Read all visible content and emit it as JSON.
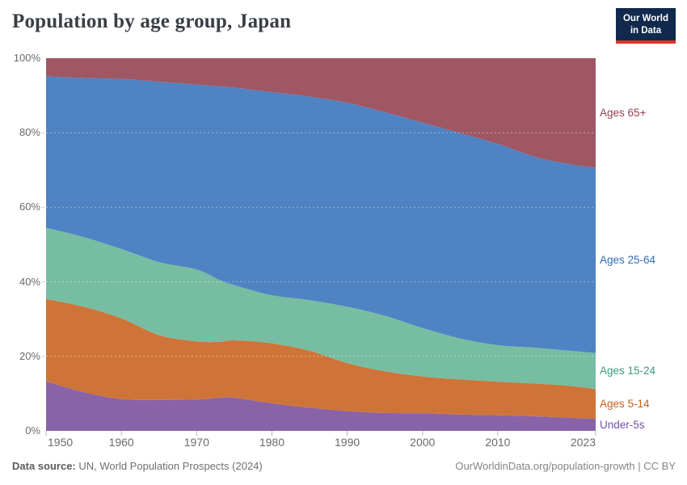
{
  "header": {
    "title": "Population by age group, Japan",
    "logo": {
      "line1": "Our World",
      "line2": "in Data"
    }
  },
  "footer": {
    "source_label": "Data source:",
    "source_value": " UN, World Population Prospects (2024)",
    "link": "OurWorldinData.org/population-growth",
    "separator": " | ",
    "license": "CC BY"
  },
  "chart_data": {
    "type": "area",
    "stacked": true,
    "normalized": true,
    "unit": "%",
    "title": "Population by age group, Japan",
    "xlim": [
      1950,
      2023
    ],
    "ylim": [
      0,
      100
    ],
    "grid": "dashed-horizontal",
    "legend_position": "right",
    "x": [
      1950,
      1955,
      1960,
      1965,
      1970,
      1973,
      1975,
      1980,
      1985,
      1990,
      1995,
      2000,
      2005,
      2010,
      2015,
      2020,
      2023
    ],
    "x_tick_years": [
      1950,
      1960,
      1970,
      1980,
      1990,
      2000,
      2010,
      2023
    ],
    "x_tick_labels": [
      "1950",
      "1960",
      "1970",
      "1980",
      "1990",
      "2000",
      "2010",
      "2023"
    ],
    "y_tick_values": [
      0,
      20,
      40,
      60,
      80,
      100
    ],
    "y_tick_labels": [
      "0%",
      "20%",
      "40%",
      "60%",
      "80%",
      "100%"
    ],
    "gridline_values": [
      20,
      40,
      60,
      80
    ],
    "series": [
      {
        "name": "Under-5s",
        "color": "#8a62a8",
        "label_color": "#7152a8",
        "values": [
          13.3,
          10.4,
          8.5,
          8.3,
          8.4,
          8.9,
          8.9,
          7.4,
          6.2,
          5.3,
          4.8,
          4.7,
          4.4,
          4.2,
          3.9,
          3.5,
          3.2
        ]
      },
      {
        "name": "Ages 5-14",
        "color": "#ce7438",
        "label_color": "#c4601f",
        "values": [
          22.1,
          22.9,
          21.7,
          17.4,
          15.6,
          15.0,
          15.4,
          16.1,
          15.3,
          12.9,
          11.2,
          9.9,
          9.4,
          9.0,
          8.8,
          8.5,
          8.0
        ]
      },
      {
        "name": "Ages 15-24",
        "color": "#77bda2",
        "label_color": "#3a9a7c",
        "values": [
          19.1,
          18.7,
          18.6,
          19.6,
          19.3,
          16.6,
          14.8,
          12.9,
          13.6,
          15.1,
          14.9,
          13.0,
          11.0,
          9.8,
          9.6,
          9.4,
          9.7
        ]
      },
      {
        "name": "Ages 25-64",
        "color": "#4f83c3",
        "label_color": "#2e6db4",
        "values": [
          40.6,
          42.7,
          45.6,
          48.4,
          49.6,
          52.0,
          53.0,
          54.5,
          54.6,
          54.7,
          54.6,
          55.1,
          55.1,
          54.0,
          51.2,
          50.0,
          49.7
        ]
      },
      {
        "name": "Ages 65+",
        "color": "#9e5763",
        "label_color": "#993c4e",
        "values": [
          4.9,
          5.3,
          5.6,
          6.3,
          7.1,
          7.5,
          7.9,
          9.1,
          10.3,
          12.0,
          14.5,
          17.3,
          20.1,
          23.0,
          26.5,
          28.6,
          29.4
        ]
      }
    ]
  }
}
